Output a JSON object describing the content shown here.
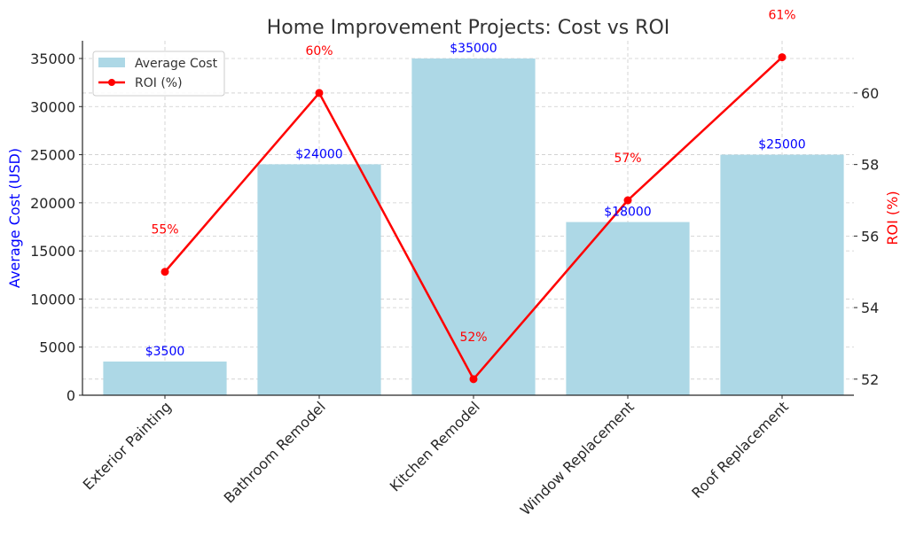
{
  "chart_data": {
    "type": "bar+line",
    "title": "Home Improvement Projects: Cost vs ROI",
    "xlabel": "",
    "ylabel": "Average Cost (USD)",
    "ylabel_right": "ROI (%)",
    "categories": [
      "Exterior Painting",
      "Bathroom Remodel",
      "Kitchen Remodel",
      "Window Replacement",
      "Roof Replacement"
    ],
    "series": [
      {
        "name": "Average Cost",
        "type": "bar",
        "axis": "left",
        "color": "#add8e6",
        "values": [
          3500,
          24000,
          35000,
          18000,
          25000
        ],
        "labels": [
          "$3500",
          "$24000",
          "$35000",
          "$18000",
          "$25000"
        ],
        "label_color": "#0000ff"
      },
      {
        "name": "ROI (%)",
        "type": "line",
        "axis": "right",
        "color": "#ff0000",
        "marker": "circle",
        "values": [
          55,
          60,
          52,
          57,
          61
        ],
        "labels": [
          "55%",
          "60%",
          "52%",
          "57%",
          "61%"
        ],
        "label_color": "#ff0000"
      }
    ],
    "ylim": [
      0,
      36842
    ],
    "ylim_right": [
      51.55,
      61.46
    ],
    "yticks": [
      0,
      5000,
      10000,
      15000,
      20000,
      25000,
      30000,
      35000
    ],
    "yticks_right": [
      52,
      54,
      56,
      58,
      60
    ],
    "grid": true,
    "legend_position": "upper left",
    "legend": [
      "Average Cost",
      "ROI (%)"
    ]
  },
  "colors": {
    "bar": "#add8e6",
    "line": "#ff0000",
    "left_axis_title": "#0000ff",
    "right_axis_title": "#ff0000",
    "bar_label": "#0000ff",
    "roi_label": "#ff0000"
  }
}
